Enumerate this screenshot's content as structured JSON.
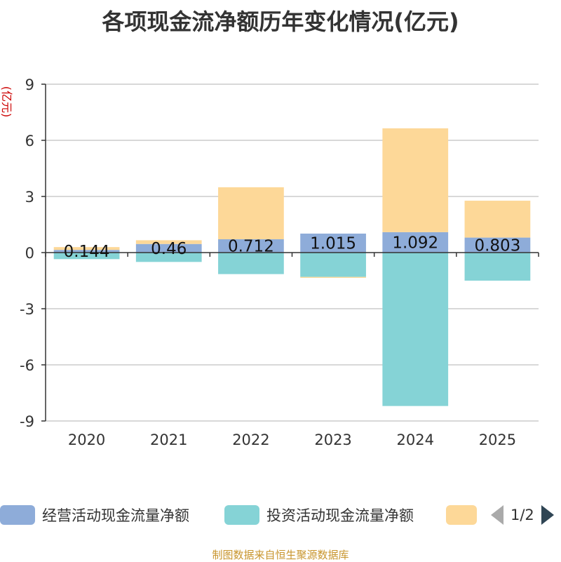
{
  "chart_data": {
    "type": "bar",
    "stacked": true,
    "title": "各项现金流净额历年变化情况(亿元)",
    "ylabel": "(亿元)",
    "xlabel": "",
    "ylim": [
      -9,
      9
    ],
    "yticks": [
      9,
      6,
      3,
      0,
      -3,
      -6,
      -9
    ],
    "categories": [
      "2020",
      "2021",
      "2022",
      "2023",
      "2024",
      "2025"
    ],
    "series": [
      {
        "name": "经营活动现金流量净额",
        "color": "#8eacd9",
        "values": [
          0.144,
          0.46,
          0.712,
          1.015,
          1.092,
          0.803
        ]
      },
      {
        "name": "投资活动现金流量净额",
        "color": "#85d3d6",
        "values": [
          -0.35,
          -0.5,
          -1.15,
          -1.3,
          -8.2,
          -1.5
        ]
      },
      {
        "name": "",
        "color": "#fdd898",
        "values": [
          0.15,
          0.2,
          2.78,
          -0.05,
          5.55,
          1.97
        ]
      }
    ],
    "data_labels": [
      "0.144",
      "0.46",
      "0.712",
      "1.015",
      "1.092",
      "0.803"
    ],
    "grid": true,
    "legend_position": "bottom"
  },
  "legend": {
    "page": "1/2"
  },
  "source": "制图数据来自恒生聚源数据库"
}
